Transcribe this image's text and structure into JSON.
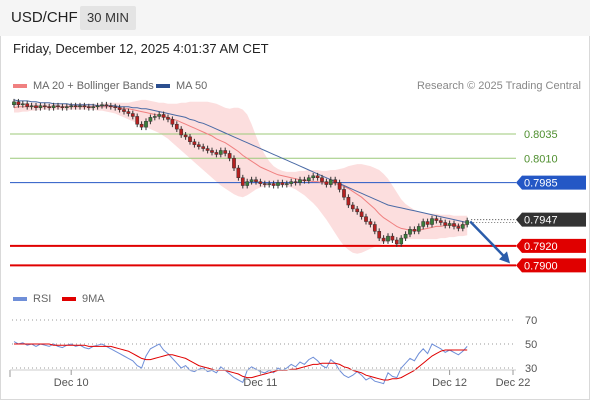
{
  "header": {
    "symbol": "USD/CHF",
    "timeframe": "30 MIN",
    "datetime": "Friday, December 12, 2025 4:01:37 AM CET"
  },
  "legend": {
    "ma20": "MA 20 + Bollinger Bands",
    "ma50": "MA 50",
    "credit": "Research © 2025 Trading Central",
    "rsi": "RSI",
    "ma9": "9MA"
  },
  "colors": {
    "ma20": "#f08080",
    "bollinger_fill": "#fbd3d3",
    "ma50": "#4a6aa5",
    "green_level": "#9cc97a",
    "blue_level": "#2457c5",
    "red_level": "#e00000",
    "current_tag": "#333333",
    "rsi": "#6f8fd8",
    "rsi_ma": "#e00000",
    "candle_up": "#3a7d3a",
    "candle_down": "#b52020",
    "arrow": "#2a5caa"
  },
  "chart_data": [
    {
      "type": "candlestick",
      "title": "",
      "xlabel": "",
      "ylabel": "",
      "x_ticks": [
        "Dec 10",
        "Dec 11",
        "Dec 12",
        "Dec 22"
      ],
      "ylim": [
        0.7887,
        0.8074
      ],
      "levels": [
        {
          "value": 0.8035,
          "label": "0.8035",
          "style": "green"
        },
        {
          "value": 0.801,
          "label": "0.8010",
          "style": "green"
        },
        {
          "value": 0.7985,
          "label": "0.7985",
          "style": "blue"
        },
        {
          "value": 0.7947,
          "label": "0.7947",
          "style": "current"
        },
        {
          "value": 0.792,
          "label": "0.7920",
          "style": "red"
        },
        {
          "value": 0.79,
          "label": "0.7900",
          "style": "red"
        }
      ],
      "close": [
        0.8068,
        0.8065,
        0.8066,
        0.8063,
        0.8064,
        0.8062,
        0.8064,
        0.8063,
        0.8062,
        0.8064,
        0.8063,
        0.8062,
        0.8063,
        0.8064,
        0.8063,
        0.8064,
        0.8063,
        0.8062,
        0.8063,
        0.8064,
        0.8065,
        0.8064,
        0.8063,
        0.8062,
        0.806,
        0.8058,
        0.8056,
        0.8053,
        0.8045,
        0.8042,
        0.8048,
        0.8052,
        0.8053,
        0.8055,
        0.8052,
        0.805,
        0.8045,
        0.804,
        0.8034,
        0.8032,
        0.8027,
        0.8024,
        0.8022,
        0.802,
        0.8018,
        0.8016,
        0.8014,
        0.8018,
        0.8015,
        0.801,
        0.8,
        0.799,
        0.7982,
        0.7986,
        0.7988,
        0.7986,
        0.7984,
        0.7983,
        0.7984,
        0.7982,
        0.7985,
        0.7983,
        0.7984,
        0.7986,
        0.7985,
        0.7988,
        0.7987,
        0.799,
        0.7992,
        0.799,
        0.7986,
        0.7983,
        0.7988,
        0.7985,
        0.7978,
        0.797,
        0.7962,
        0.7958,
        0.7955,
        0.795,
        0.7945,
        0.7942,
        0.7935,
        0.7928,
        0.7925,
        0.793,
        0.7926,
        0.7922,
        0.7928,
        0.7932,
        0.7937,
        0.7935,
        0.794,
        0.7945,
        0.7942,
        0.7948,
        0.7946,
        0.7944,
        0.7941,
        0.7943,
        0.794,
        0.7938,
        0.7942,
        0.7946
      ],
      "ma20": [
        0.8062,
        0.8063,
        0.8063,
        0.8063,
        0.8063,
        0.8063,
        0.8063,
        0.8063,
        0.8063,
        0.8063,
        0.8063,
        0.8063,
        0.8063,
        0.8063,
        0.8063,
        0.8063,
        0.8063,
        0.8063,
        0.8063,
        0.8063,
        0.8063,
        0.8063,
        0.8063,
        0.8063,
        0.8062,
        0.8061,
        0.8061,
        0.806,
        0.8059,
        0.8058,
        0.8057,
        0.8056,
        0.8055,
        0.8054,
        0.8053,
        0.8052,
        0.805,
        0.8049,
        0.8047,
        0.8045,
        0.8043,
        0.8041,
        0.8039,
        0.8037,
        0.8035,
        0.8033,
        0.803,
        0.8028,
        0.8026,
        0.8023,
        0.802,
        0.8017,
        0.8013,
        0.801,
        0.8007,
        0.8004,
        0.8001,
        0.7999,
        0.7997,
        0.7995,
        0.7993,
        0.7992,
        0.7991,
        0.799,
        0.7989,
        0.7988,
        0.7987,
        0.7987,
        0.7986,
        0.7986,
        0.7985,
        0.7985,
        0.7985,
        0.7984,
        0.7983,
        0.7981,
        0.7979,
        0.7976,
        0.7973,
        0.797,
        0.7966,
        0.7962,
        0.7958,
        0.7953,
        0.7949,
        0.7946,
        0.7943,
        0.794,
        0.7938,
        0.7937,
        0.7936,
        0.7936,
        0.7936,
        0.7937,
        0.7938,
        0.7939,
        0.794,
        0.794,
        0.7941,
        0.7941,
        0.7941,
        0.7941,
        0.7941,
        0.7942
      ],
      "bollinger_upper": [
        0.8068,
        0.8068,
        0.8067,
        0.8067,
        0.8067,
        0.8067,
        0.8066,
        0.8066,
        0.8066,
        0.8066,
        0.8066,
        0.8066,
        0.8066,
        0.8066,
        0.8066,
        0.8066,
        0.8066,
        0.8066,
        0.8066,
        0.8066,
        0.8066,
        0.8067,
        0.8067,
        0.8067,
        0.8067,
        0.8067,
        0.8067,
        0.8068,
        0.8069,
        0.807,
        0.807,
        0.8069,
        0.8068,
        0.8067,
        0.8067,
        0.8066,
        0.8066,
        0.8066,
        0.8067,
        0.8067,
        0.8068,
        0.8068,
        0.8068,
        0.8068,
        0.8068,
        0.8067,
        0.8066,
        0.8064,
        0.8062,
        0.8061,
        0.8062,
        0.8062,
        0.806,
        0.8055,
        0.8045,
        0.8033,
        0.8022,
        0.8014,
        0.8007,
        0.8002,
        0.7999,
        0.7997,
        0.7996,
        0.7996,
        0.7996,
        0.7997,
        0.7997,
        0.7998,
        0.7998,
        0.7998,
        0.7997,
        0.7997,
        0.7998,
        0.7998,
        0.7999,
        0.8,
        0.8002,
        0.8003,
        0.8004,
        0.8004,
        0.8003,
        0.8002,
        0.8,
        0.7998,
        0.7994,
        0.7989,
        0.7982,
        0.7975,
        0.7968,
        0.7963,
        0.796,
        0.7957,
        0.7955,
        0.7954,
        0.7953,
        0.7953,
        0.7953,
        0.7952,
        0.7952,
        0.7952,
        0.7951,
        0.7951,
        0.7951,
        0.7951
      ],
      "bollinger_lower": [
        0.8057,
        0.8057,
        0.8058,
        0.8058,
        0.8059,
        0.8059,
        0.806,
        0.806,
        0.806,
        0.806,
        0.806,
        0.806,
        0.806,
        0.806,
        0.806,
        0.806,
        0.806,
        0.806,
        0.806,
        0.8059,
        0.8059,
        0.8058,
        0.8057,
        0.8056,
        0.8054,
        0.8052,
        0.805,
        0.8048,
        0.8046,
        0.8044,
        0.8042,
        0.804,
        0.8038,
        0.8036,
        0.8033,
        0.803,
        0.8026,
        0.8022,
        0.8018,
        0.8014,
        0.801,
        0.8006,
        0.8002,
        0.7998,
        0.7994,
        0.799,
        0.7986,
        0.7982,
        0.7979,
        0.7976,
        0.7973,
        0.7971,
        0.797,
        0.7972,
        0.7975,
        0.7978,
        0.798,
        0.7981,
        0.7982,
        0.7982,
        0.7982,
        0.7982,
        0.7981,
        0.798,
        0.7978,
        0.7975,
        0.7972,
        0.7968,
        0.7964,
        0.7959,
        0.7953,
        0.7947,
        0.794,
        0.7933,
        0.7926,
        0.792,
        0.7916,
        0.7913,
        0.7912,
        0.7913,
        0.7915,
        0.7917,
        0.7919,
        0.7921,
        0.7923,
        0.7924,
        0.7925,
        0.7926,
        0.7926,
        0.7927,
        0.7927,
        0.7927,
        0.7927,
        0.7927,
        0.7927,
        0.7927,
        0.7927,
        0.7928,
        0.7928,
        0.7929,
        0.7929,
        0.793,
        0.793,
        0.7931
      ],
      "ma50": [
        0.807,
        0.8069,
        0.8069,
        0.8069,
        0.8068,
        0.8068,
        0.8067,
        0.8067,
        0.8067,
        0.8066,
        0.8066,
        0.8066,
        0.8066,
        0.8065,
        0.8065,
        0.8065,
        0.8065,
        0.8065,
        0.8065,
        0.8064,
        0.8064,
        0.8064,
        0.8064,
        0.8064,
        0.8063,
        0.8063,
        0.8063,
        0.8062,
        0.8062,
        0.8061,
        0.8061,
        0.806,
        0.8059,
        0.8058,
        0.8057,
        0.8056,
        0.8055,
        0.8054,
        0.8053,
        0.8052,
        0.805,
        0.8049,
        0.8047,
        0.8046,
        0.8044,
        0.8042,
        0.804,
        0.8038,
        0.8036,
        0.8034,
        0.8032,
        0.803,
        0.8028,
        0.8026,
        0.8024,
        0.8022,
        0.802,
        0.8018,
        0.8016,
        0.8014,
        0.8012,
        0.801,
        0.8008,
        0.8006,
        0.8004,
        0.8002,
        0.8,
        0.7998,
        0.7996,
        0.7994,
        0.7992,
        0.799,
        0.7988,
        0.7986,
        0.7984,
        0.7982,
        0.798,
        0.7978,
        0.7976,
        0.7974,
        0.7972,
        0.797,
        0.7968,
        0.7966,
        0.7964,
        0.7962,
        0.7961,
        0.796,
        0.7959,
        0.7958,
        0.7957,
        0.7956,
        0.7955,
        0.7954,
        0.7953,
        0.7952,
        0.7951,
        0.795,
        0.7949,
        0.7948,
        0.7947,
        0.7946,
        0.7945,
        0.7944
      ],
      "projection": {
        "from": 0.7945,
        "to": 0.79
      }
    },
    {
      "type": "line",
      "title": "",
      "xlabel": "",
      "ylabel": "",
      "ylim": [
        10,
        80
      ],
      "y_ticks": [
        70,
        50,
        30
      ],
      "series": [
        {
          "name": "RSI",
          "values": [
            52,
            50,
            51,
            49,
            50,
            48,
            50,
            49,
            48,
            50,
            48,
            47,
            49,
            50,
            48,
            49,
            47,
            46,
            48,
            49,
            50,
            48,
            46,
            44,
            42,
            40,
            38,
            36,
            32,
            30,
            40,
            46,
            48,
            50,
            45,
            42,
            38,
            34,
            30,
            32,
            28,
            27,
            29,
            30,
            27,
            28,
            26,
            31,
            28,
            25,
            22,
            20,
            18,
            28,
            31,
            29,
            27,
            26,
            28,
            26,
            30,
            28,
            30,
            33,
            31,
            35,
            33,
            37,
            39,
            36,
            32,
            30,
            37,
            34,
            28,
            24,
            22,
            24,
            27,
            24,
            20,
            22,
            19,
            18,
            17,
            26,
            23,
            22,
            30,
            34,
            38,
            36,
            42,
            46,
            42,
            50,
            48,
            46,
            43,
            45,
            43,
            41,
            44,
            48
          ]
        },
        {
          "name": "9MA",
          "values": [
            50,
            50,
            50,
            50,
            50,
            50,
            50,
            50,
            50,
            49,
            49,
            49,
            49,
            49,
            49,
            49,
            49,
            48,
            48,
            48,
            48,
            48,
            48,
            47,
            46,
            45,
            44,
            42,
            40,
            38,
            37,
            37,
            38,
            39,
            40,
            41,
            41,
            40,
            39,
            38,
            36,
            34,
            32,
            31,
            30,
            29,
            28,
            28,
            28,
            27,
            26,
            25,
            23,
            22,
            22,
            23,
            24,
            25,
            26,
            27,
            28,
            28,
            28,
            29,
            29,
            30,
            31,
            32,
            33,
            33,
            34,
            34,
            34,
            34,
            33,
            31,
            30,
            28,
            27,
            26,
            24,
            23,
            22,
            21,
            20,
            20,
            21,
            21,
            22,
            24,
            26,
            28,
            31,
            34,
            37,
            40,
            42,
            44,
            45,
            45,
            45,
            45,
            45,
            45
          ]
        }
      ]
    }
  ]
}
